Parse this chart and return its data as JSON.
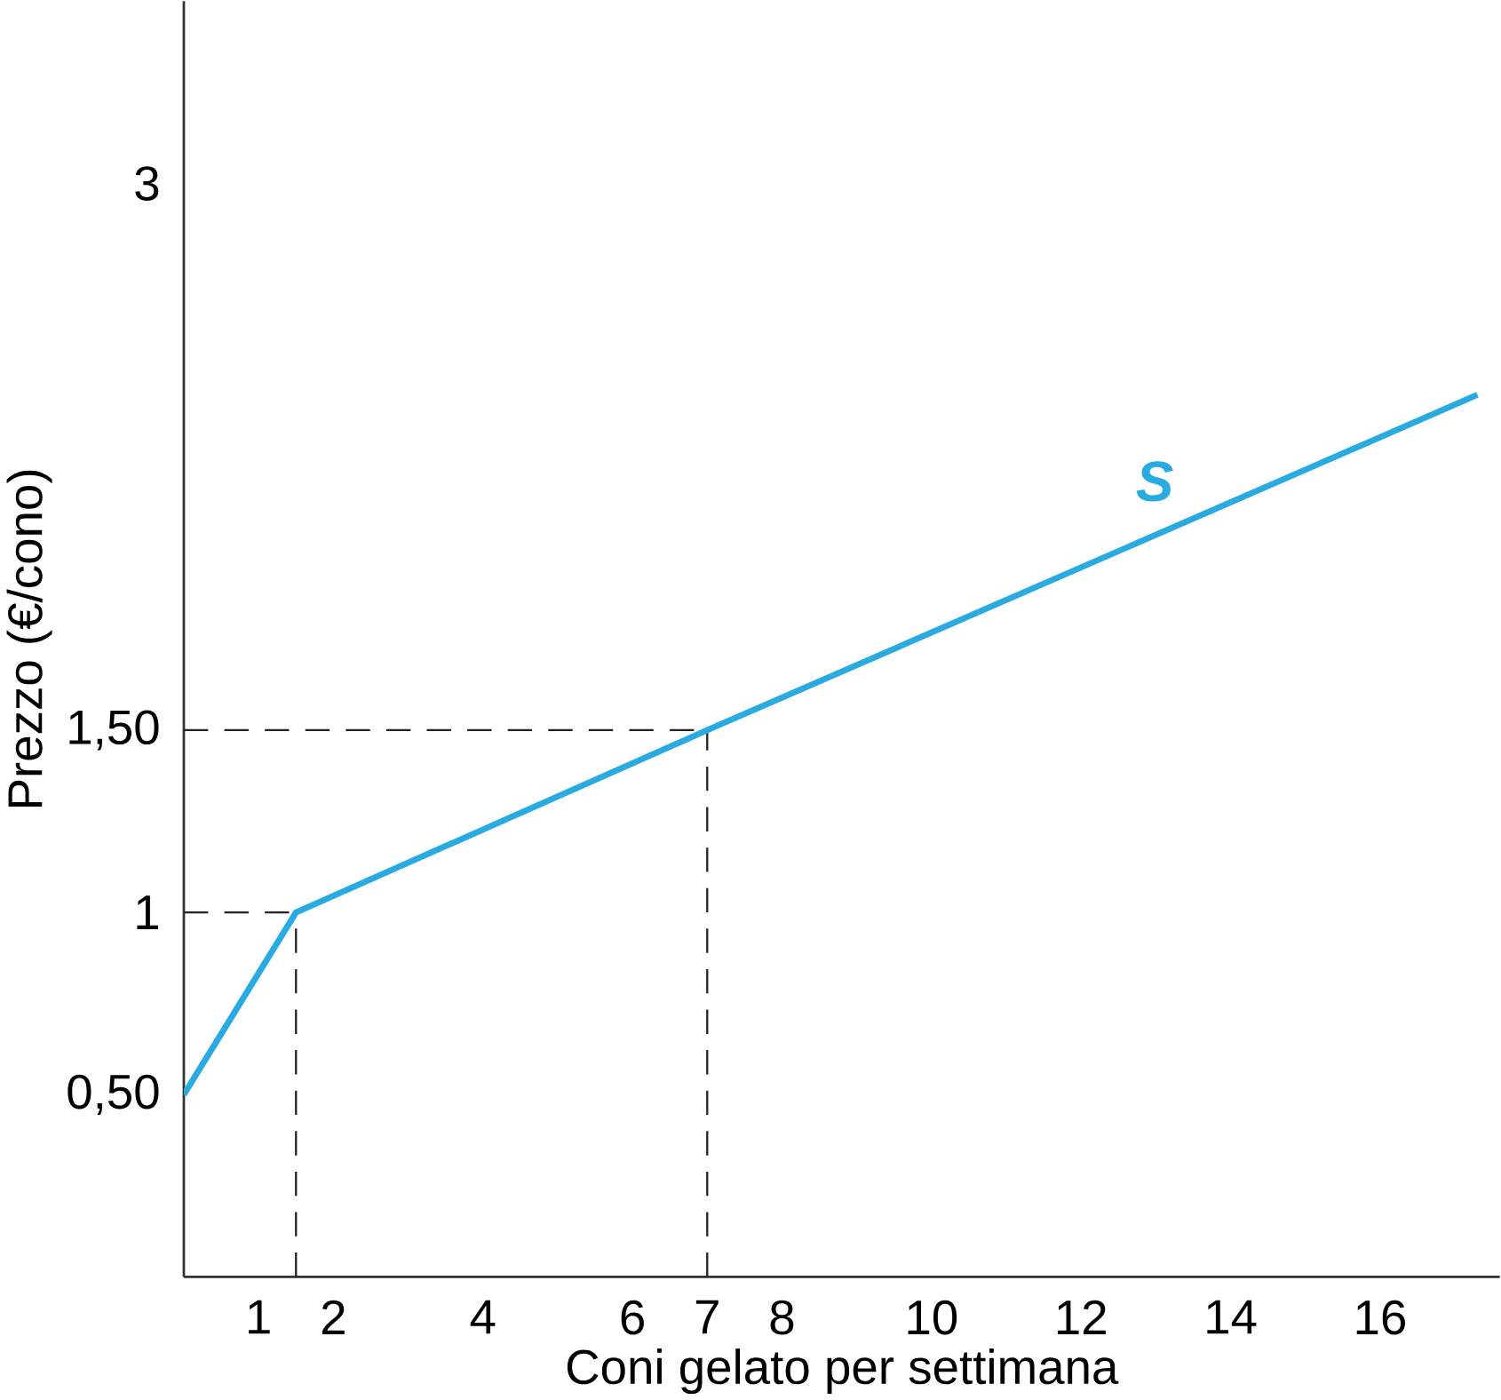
{
  "chart_data": {
    "type": "line",
    "xlabel": "Coni gelato per settimana",
    "ylabel": "Prezzo (€/cono)",
    "x": [
      0,
      1.5,
      7,
      17.3
    ],
    "series": [
      {
        "name": "S",
        "color": "#29abe2",
        "values": [
          0.5,
          1,
          1.5,
          2.42
        ]
      }
    ],
    "xlim": [
      0,
      17.6
    ],
    "ylim": [
      0,
      3.5
    ],
    "xticks": [
      1,
      2,
      4,
      6,
      7,
      8,
      10,
      12,
      14,
      16
    ],
    "yticks": [
      {
        "value": 0.5,
        "label": "0,50"
      },
      1,
      {
        "value": 1.5,
        "label": "1,50"
      },
      3
    ],
    "ref_lines": [
      {
        "axis": "x",
        "value": 1.5,
        "line_style": "dashed",
        "color": "#222222"
      },
      {
        "axis": "y",
        "value": 1,
        "line_style": "dashed",
        "color": "#222222"
      },
      {
        "axis": "x",
        "value": 7,
        "line_style": "dashed",
        "color": "#222222"
      },
      {
        "axis": "y",
        "value": 1.5,
        "line_style": "dashed",
        "color": "#222222"
      }
    ],
    "grid": false,
    "legend": false,
    "marker": "none",
    "line_style": "solid"
  }
}
